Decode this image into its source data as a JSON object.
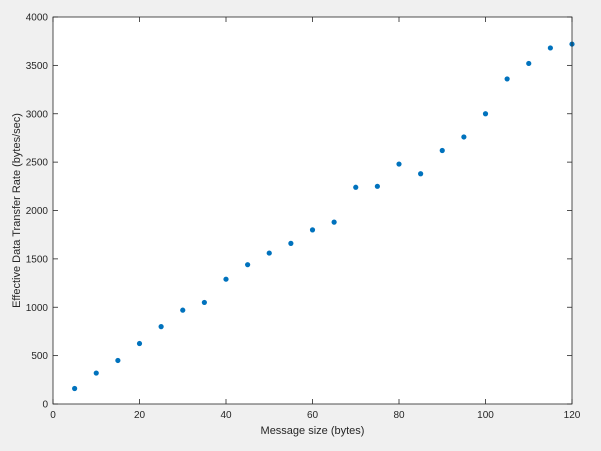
{
  "chart_data": {
    "type": "scatter",
    "title": "",
    "xlabel": "Message size (bytes)",
    "ylabel": "Effective Data Transfer Rate (bytes/sec)",
    "xlim": [
      0,
      120
    ],
    "ylim": [
      0,
      4000
    ],
    "xticks": [
      0,
      20,
      40,
      60,
      80,
      100,
      120
    ],
    "yticks": [
      0,
      500,
      1000,
      1500,
      2000,
      2500,
      3000,
      3500,
      4000
    ],
    "xtick_labels": [
      "0",
      "20",
      "40",
      "60",
      "80",
      "100",
      "120"
    ],
    "ytick_labels": [
      "0",
      "500",
      "1000",
      "1500",
      "2000",
      "2500",
      "3000",
      "3500",
      "4000"
    ],
    "grid": false,
    "marker_color": "#0072bd",
    "x": [
      5,
      10,
      15,
      20,
      25,
      30,
      35,
      40,
      45,
      50,
      55,
      60,
      65,
      70,
      75,
      80,
      85,
      90,
      95,
      100,
      105,
      110,
      115,
      120
    ],
    "y": [
      160,
      320,
      450,
      625,
      800,
      970,
      1050,
      1290,
      1440,
      1560,
      1660,
      1800,
      1880,
      2240,
      2250,
      2480,
      2380,
      2620,
      2760,
      3000,
      3360,
      3520,
      3680,
      3720
    ]
  }
}
